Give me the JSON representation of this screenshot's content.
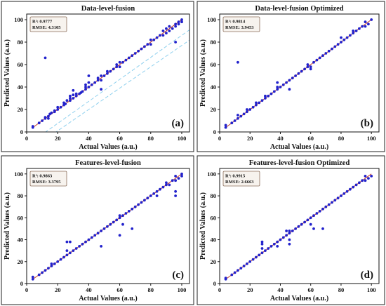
{
  "chart_data": [
    {
      "type": "scatter",
      "title": "Data-level-fusion",
      "xlabel": "Actual Values (a.u.)",
      "ylabel": "Predicted Values (a.u.)",
      "xlim": [
        0,
        105
      ],
      "ylim": [
        0,
        105
      ],
      "xticks": [
        "0",
        "20",
        "40",
        "60",
        "80",
        "100"
      ],
      "yticks": [
        "0",
        "20",
        "40",
        "60",
        "80",
        "100"
      ],
      "stats": [
        "R²: 0.9777",
        "RMSE: 4.3105"
      ],
      "panel_label": "(a)",
      "has_dashed_band": true,
      "x": [
        4,
        4,
        8,
        10,
        12,
        12,
        14,
        15,
        16,
        18,
        18,
        20,
        20,
        22,
        24,
        24,
        25,
        26,
        28,
        28,
        28,
        30,
        30,
        32,
        32,
        34,
        35,
        36,
        38,
        38,
        38,
        40,
        40,
        42,
        44,
        46,
        46,
        48,
        48,
        50,
        52,
        52,
        54,
        56,
        58,
        58,
        60,
        60,
        62,
        64,
        66,
        68,
        70,
        72,
        74,
        76,
        78,
        80,
        80,
        82,
        84,
        86,
        88,
        88,
        90,
        90,
        92,
        92,
        94,
        96,
        96,
        98,
        98,
        100,
        100,
        12,
        30,
        40,
        48,
        96,
        14
      ],
      "y": [
        4,
        5,
        8,
        10,
        12,
        13,
        14,
        16,
        17,
        18,
        19,
        20,
        22,
        22,
        24,
        26,
        25,
        28,
        28,
        30,
        32,
        30,
        33,
        32,
        34,
        34,
        35,
        36,
        38,
        40,
        42,
        40,
        44,
        42,
        44,
        46,
        48,
        46,
        50,
        50,
        52,
        54,
        54,
        56,
        58,
        60,
        58,
        62,
        62,
        64,
        66,
        68,
        70,
        72,
        74,
        76,
        78,
        78,
        82,
        82,
        84,
        86,
        86,
        90,
        88,
        92,
        90,
        94,
        92,
        94,
        96,
        96,
        98,
        98,
        100,
        66,
        37,
        50,
        38,
        80,
        12
      ]
    },
    {
      "type": "scatter",
      "title": "Data-level-fusion Optimized",
      "xlabel": "Actual Values (a.u.)",
      "ylabel": "Predicted Values (a.u.)",
      "xlim": [
        0,
        105
      ],
      "ylim": [
        0,
        105
      ],
      "xticks": [
        "0",
        "20",
        "40",
        "60",
        "80",
        "100"
      ],
      "yticks": [
        "0",
        "20",
        "40",
        "60",
        "80",
        "100"
      ],
      "stats": [
        "R²: 0.9814",
        "RMSE: 3.9453"
      ],
      "panel_label": "(b)",
      "has_dashed_band": false,
      "x": [
        4,
        4,
        8,
        10,
        12,
        12,
        14,
        16,
        18,
        18,
        20,
        22,
        24,
        24,
        26,
        28,
        30,
        30,
        32,
        34,
        36,
        38,
        38,
        40,
        42,
        44,
        46,
        48,
        50,
        52,
        54,
        56,
        58,
        58,
        60,
        62,
        64,
        66,
        68,
        70,
        72,
        74,
        76,
        78,
        80,
        80,
        82,
        84,
        86,
        88,
        88,
        90,
        92,
        94,
        96,
        96,
        98,
        100,
        12,
        46,
        38,
        60
      ],
      "y": [
        4,
        6,
        8,
        10,
        12,
        15,
        14,
        16,
        18,
        20,
        20,
        22,
        24,
        26,
        26,
        28,
        30,
        32,
        32,
        34,
        36,
        38,
        40,
        40,
        42,
        44,
        46,
        48,
        50,
        52,
        54,
        56,
        58,
        60,
        58,
        62,
        64,
        66,
        68,
        70,
        72,
        74,
        76,
        78,
        80,
        84,
        82,
        84,
        86,
        88,
        90,
        90,
        92,
        94,
        94,
        98,
        96,
        100,
        62,
        38,
        44,
        56
      ]
    },
    {
      "type": "scatter",
      "title": "Features-level-fusion",
      "xlabel": "Actual Values (a.u.)",
      "ylabel": "Predicted Values (a.u.)",
      "xlim": [
        0,
        105
      ],
      "ylim": [
        0,
        105
      ],
      "xticks": [
        "0",
        "20",
        "40",
        "60",
        "80",
        "100"
      ],
      "yticks": [
        "0",
        "20",
        "40",
        "60",
        "80",
        "100"
      ],
      "stats": [
        "R²: 0.9863",
        "RMSE: 3.3795"
      ],
      "panel_label": "(c)",
      "has_dashed_band": false,
      "x": [
        4,
        4,
        8,
        10,
        12,
        14,
        16,
        16,
        18,
        20,
        22,
        24,
        26,
        26,
        28,
        30,
        32,
        34,
        36,
        38,
        40,
        42,
        44,
        46,
        48,
        50,
        52,
        54,
        56,
        58,
        60,
        60,
        62,
        64,
        66,
        68,
        70,
        72,
        74,
        76,
        78,
        80,
        82,
        84,
        86,
        88,
        90,
        90,
        92,
        94,
        96,
        96,
        98,
        100,
        100,
        26,
        28,
        48,
        60,
        62,
        68,
        84,
        96,
        96
      ],
      "y": [
        4,
        6,
        8,
        10,
        12,
        14,
        16,
        18,
        18,
        20,
        22,
        24,
        26,
        30,
        28,
        30,
        32,
        34,
        36,
        38,
        40,
        42,
        44,
        46,
        48,
        50,
        52,
        54,
        56,
        58,
        60,
        62,
        62,
        64,
        66,
        68,
        70,
        72,
        74,
        76,
        78,
        80,
        82,
        84,
        86,
        88,
        90,
        92,
        90,
        94,
        94,
        98,
        96,
        98,
        100,
        38,
        38,
        34,
        44,
        54,
        50,
        80,
        84,
        80
      ]
    },
    {
      "type": "scatter",
      "title": "Features-level-fusion Optimized",
      "xlabel": "Actual Values (a.u.)",
      "ylabel": "Predicted Values (a.u.)",
      "xlim": [
        0,
        105
      ],
      "ylim": [
        0,
        105
      ],
      "xticks": [
        "0",
        "20",
        "40",
        "60",
        "80",
        "100"
      ],
      "yticks": [
        "0",
        "20",
        "40",
        "60",
        "80",
        "100"
      ],
      "stats": [
        "R²: 0.9915",
        "RMSE: 2.6663"
      ],
      "panel_label": "(d)",
      "has_dashed_band": false,
      "x": [
        4,
        4,
        8,
        10,
        12,
        14,
        16,
        18,
        20,
        22,
        24,
        26,
        28,
        28,
        30,
        32,
        34,
        36,
        38,
        40,
        42,
        44,
        46,
        46,
        48,
        50,
        52,
        54,
        56,
        58,
        60,
        62,
        64,
        66,
        68,
        70,
        72,
        74,
        76,
        78,
        80,
        82,
        84,
        86,
        88,
        90,
        92,
        94,
        96,
        96,
        98,
        100,
        28,
        28,
        38,
        44,
        46,
        46,
        60,
        62,
        68
      ],
      "y": [
        4,
        5,
        8,
        10,
        12,
        14,
        16,
        18,
        20,
        22,
        24,
        26,
        28,
        32,
        30,
        32,
        34,
        36,
        38,
        40,
        42,
        44,
        46,
        48,
        48,
        50,
        52,
        54,
        56,
        58,
        60,
        62,
        64,
        66,
        68,
        70,
        72,
        74,
        76,
        78,
        80,
        82,
        84,
        86,
        88,
        90,
        92,
        94,
        94,
        98,
        96,
        98,
        38,
        36,
        34,
        48,
        40,
        36,
        54,
        50,
        50
      ]
    }
  ]
}
